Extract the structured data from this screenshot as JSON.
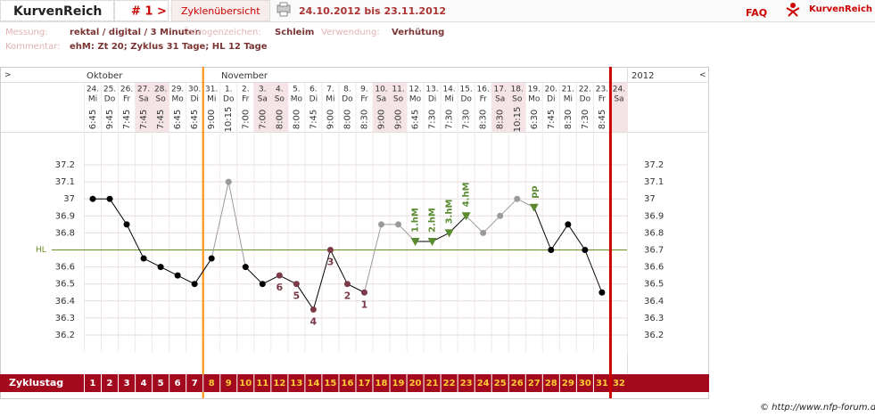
{
  "header": {
    "app_title": "KurvenReich",
    "cycle_nav": "# 1 >",
    "overview_link": "Zyklenübersicht",
    "date_range": "24.10.2012 bis 23.11.2012",
    "faq": "FAQ",
    "logo_text": "KurvenReich"
  },
  "info": {
    "measurement_label": "Messung:",
    "measurement": "rektal / digital / 3 Minuten",
    "estrogen_label": "Östrogenzeichen:",
    "estrogen": "Schleim",
    "usage_label": "Verwendung:",
    "usage": "Verhütung",
    "comment_label": "Kommentar:",
    "comment": "ehM: Zt 20; Zyklus 31 Tage; HL 12 Tage"
  },
  "chart_data": {
    "type": "line",
    "nav_left": ">",
    "nav_right": "<",
    "months": [
      "Oktober",
      "November"
    ],
    "year": "2012",
    "categories": [
      "24.",
      "25.",
      "26.",
      "27.",
      "28.",
      "29.",
      "30.",
      "31.",
      "1.",
      "2.",
      "3.",
      "4.",
      "5.",
      "6.",
      "7.",
      "8.",
      "9.",
      "10.",
      "11.",
      "12.",
      "13.",
      "14.",
      "15.",
      "16.",
      "17.",
      "18.",
      "19.",
      "20.",
      "21.",
      "22.",
      "23.",
      "24."
    ],
    "weekdays": [
      "Mi",
      "Do",
      "Fr",
      "Sa",
      "So",
      "Mo",
      "Di",
      "Mi",
      "Do",
      "Fr",
      "Sa",
      "So",
      "Mo",
      "Di",
      "Mi",
      "Do",
      "Fr",
      "Sa",
      "So",
      "Mo",
      "Di",
      "Mi",
      "Do",
      "Fr",
      "Sa",
      "So",
      "Mo",
      "Di",
      "Mi",
      "Do",
      "Fr",
      "Sa"
    ],
    "times": [
      "6:45",
      "9:45",
      "7:45",
      "7:45",
      "7:45",
      "6:45",
      "6:45",
      "9:00",
      "10:15",
      "7:00",
      "7:00",
      "8:00",
      "8:00",
      "7:45",
      "9:00",
      "8:00",
      "8:30",
      "9:00",
      "9:00",
      "6:45",
      "7:30",
      "7:30",
      "7:30",
      "8:30",
      "8:30",
      "10:15",
      "6:30",
      "7:45",
      "8:30",
      "7:30",
      "8:45",
      null
    ],
    "values": [
      37.0,
      37.0,
      36.85,
      36.65,
      36.6,
      36.55,
      36.5,
      36.65,
      37.1,
      36.6,
      36.5,
      36.55,
      36.5,
      36.35,
      36.7,
      36.5,
      36.45,
      36.85,
      36.85,
      36.75,
      36.75,
      36.8,
      36.9,
      36.8,
      36.9,
      37.0,
      36.95,
      36.7,
      36.85,
      36.7,
      36.45,
      null
    ],
    "excluded": [
      false,
      false,
      false,
      false,
      false,
      false,
      false,
      false,
      true,
      false,
      false,
      false,
      false,
      false,
      false,
      false,
      false,
      true,
      true,
      false,
      false,
      false,
      false,
      true,
      true,
      true,
      false,
      false,
      false,
      false,
      false,
      false
    ],
    "count_labels": [
      null,
      null,
      null,
      null,
      null,
      null,
      null,
      null,
      null,
      null,
      null,
      "6",
      "5",
      "4",
      "3",
      "2",
      "1",
      null,
      null,
      null,
      null,
      null,
      null,
      null,
      null,
      null,
      null,
      null,
      null,
      null,
      null,
      null
    ],
    "rise_labels": [
      null,
      null,
      null,
      null,
      null,
      null,
      null,
      null,
      null,
      null,
      null,
      null,
      null,
      null,
      null,
      null,
      null,
      null,
      null,
      "1.hM",
      "2.hM",
      "3.hM",
      "4.hM",
      null,
      null,
      null,
      "pp",
      null,
      null,
      null,
      null,
      null
    ],
    "color": "#000000",
    "excluded_color": "#9a9a9a",
    "count_color": "#7a3a48",
    "rise_color": "#5a8a30",
    "ylim": [
      36.1,
      37.4
    ],
    "yticks": [
      36.2,
      36.3,
      36.4,
      36.5,
      36.6,
      36.7,
      36.8,
      36.9,
      37,
      37.1,
      37.2
    ],
    "grid": true,
    "hl": {
      "value": 36.7,
      "label": "HL",
      "color": "#6b8e23"
    },
    "cycle_day_label": "Zyklustag",
    "cycle_days": [
      1,
      2,
      3,
      4,
      5,
      6,
      7,
      8,
      9,
      10,
      11,
      12,
      13,
      14,
      15,
      16,
      17,
      18,
      19,
      20,
      21,
      22,
      23,
      24,
      25,
      26,
      27,
      28,
      29,
      30,
      31,
      32
    ]
  },
  "footer": "© http://www.nfp-forum.de"
}
